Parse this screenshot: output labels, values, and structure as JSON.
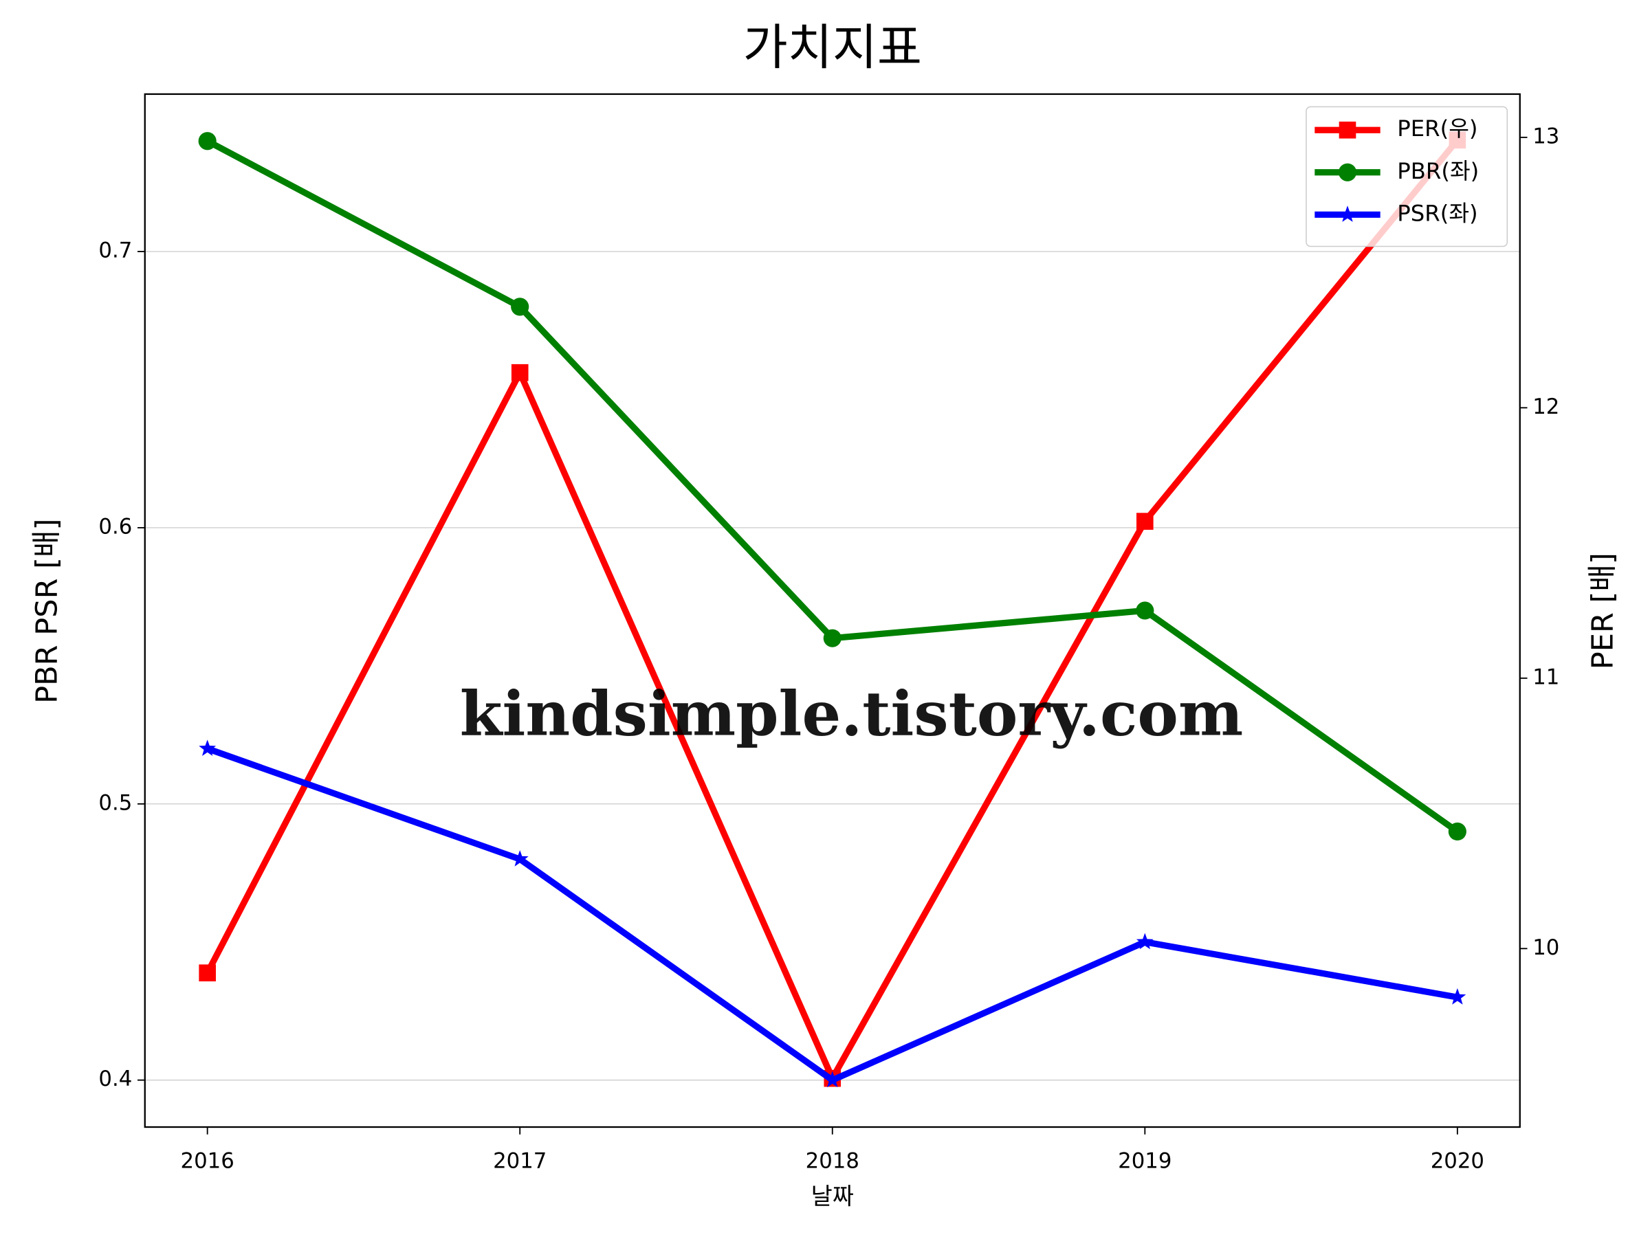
{
  "chart_data": {
    "type": "line",
    "title": "가치지표",
    "xlabel": "날짜",
    "ylabel": "PBR PSR [배]",
    "y2label": "PER [배]",
    "ylabel_color": "#008000",
    "y2label_color": "#ff0000",
    "watermark": "kindsimple.tistory.com",
    "x": [
      2016,
      2017,
      2018,
      2019,
      2020
    ],
    "xlim": [
      2015.8,
      2020.2
    ],
    "xticks": [
      2016,
      2017,
      2018,
      2019,
      2020
    ],
    "ylim": [
      0.383,
      0.757
    ],
    "yticks": [
      0.4,
      0.5,
      0.6,
      0.7
    ],
    "y2lim": [
      9.34,
      13.16
    ],
    "y2ticks": [
      10,
      11,
      12,
      13
    ],
    "grid": true,
    "legend": "upper right",
    "series": [
      {
        "name": "PER(우)",
        "color": "#ff0000",
        "marker": "square",
        "axis": "y2",
        "values": [
          9.91,
          12.13,
          9.52,
          11.58,
          12.99
        ]
      },
      {
        "name": "PBR(좌)",
        "color": "#008000",
        "marker": "circle",
        "values": [
          0.74,
          0.68,
          0.56,
          0.57,
          0.49
        ]
      },
      {
        "name": "PSR(좌)",
        "color": "#0000ff",
        "marker": "star",
        "values": [
          0.52,
          0.48,
          0.4,
          0.45,
          0.43
        ]
      }
    ]
  }
}
